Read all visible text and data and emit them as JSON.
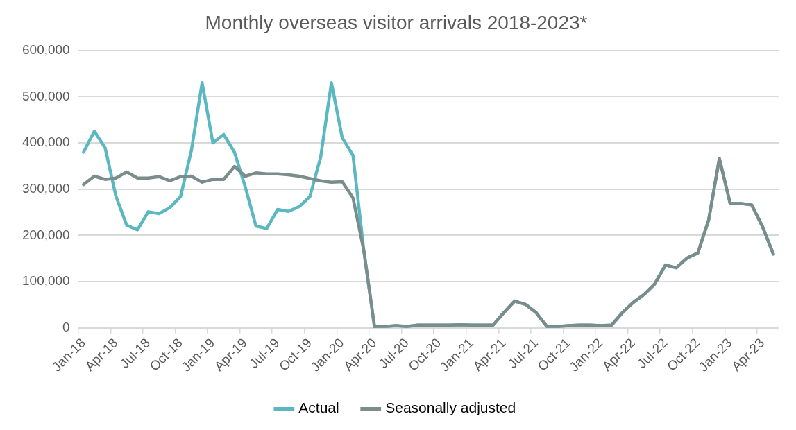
{
  "chart_data": {
    "type": "line",
    "title": "Monthly overseas visitor arrivals 2018-2023*",
    "categories": [
      "Jan-18",
      null,
      null,
      "Apr-18",
      null,
      null,
      "Jul-18",
      null,
      null,
      "Oct-18",
      null,
      null,
      "Jan-19",
      null,
      null,
      "Apr-19",
      null,
      null,
      "Jul-19",
      null,
      null,
      "Oct-19",
      null,
      null,
      "Jan-20",
      null,
      null,
      "Apr-20",
      null,
      null,
      "Jul-20",
      null,
      null,
      "Oct-20",
      null,
      null,
      "Jan-21",
      null,
      null,
      "Apr-21",
      null,
      null,
      "Jul-21",
      null,
      null,
      "Oct-21",
      null,
      null,
      "Jan-22",
      null,
      null,
      "Apr-22",
      null,
      null,
      "Jul-22",
      null,
      null,
      "Oct-22",
      null,
      null,
      "Jan-23",
      null,
      null,
      "Apr-23",
      null
    ],
    "series": [
      {
        "name": "Actual",
        "color": "#5bb8c1",
        "values": [
          380000,
          425000,
          389000,
          285000,
          222000,
          212000,
          251000,
          247000,
          260000,
          284000,
          383000,
          530000,
          400000,
          418000,
          380000,
          305000,
          220000,
          215000,
          256000,
          252000,
          262000,
          284000,
          369000,
          530000,
          411000,
          373000,
          168000,
          2000,
          3000,
          5000,
          3000,
          6000,
          6000,
          6000,
          6000,
          7000,
          6000,
          6000,
          6000,
          33000,
          58000,
          51000,
          33000,
          3000,
          3000,
          5000,
          6000,
          6000,
          5000,
          6000,
          33000,
          55000,
          72000,
          95000,
          136000,
          130000,
          151000,
          162000,
          233000,
          366000,
          269000,
          269000,
          266000,
          219000,
          160000
        ]
      },
      {
        "name": "Seasonally adjusted",
        "color": "#7a8c8c",
        "values": [
          310000,
          328000,
          321000,
          324000,
          337000,
          324000,
          324000,
          327000,
          318000,
          327000,
          328000,
          315000,
          321000,
          321000,
          349000,
          328000,
          335000,
          333000,
          333000,
          331000,
          328000,
          323000,
          318000,
          315000,
          316000,
          281000,
          168000,
          2000,
          3000,
          5000,
          3000,
          6000,
          6000,
          6000,
          6000,
          7000,
          6000,
          6000,
          6000,
          33000,
          58000,
          51000,
          33000,
          3000,
          3000,
          5000,
          6000,
          6000,
          5000,
          6000,
          33000,
          55000,
          72000,
          95000,
          136000,
          130000,
          151000,
          162000,
          233000,
          366000,
          269000,
          269000,
          266000,
          219000,
          160000
        ]
      }
    ],
    "ylim": [
      0,
      600000
    ],
    "yticks": [
      {
        "value": 0,
        "label": "0"
      },
      {
        "value": 100000,
        "label": "100,000"
      },
      {
        "value": 200000,
        "label": "200,000"
      },
      {
        "value": 300000,
        "label": "300,000"
      },
      {
        "value": 400000,
        "label": "400,000"
      },
      {
        "value": 500000,
        "label": "500,000"
      },
      {
        "value": 600000,
        "label": "600,000"
      }
    ],
    "grid": "y",
    "legend": "bottom",
    "marker": "none",
    "line_style": "solid"
  }
}
